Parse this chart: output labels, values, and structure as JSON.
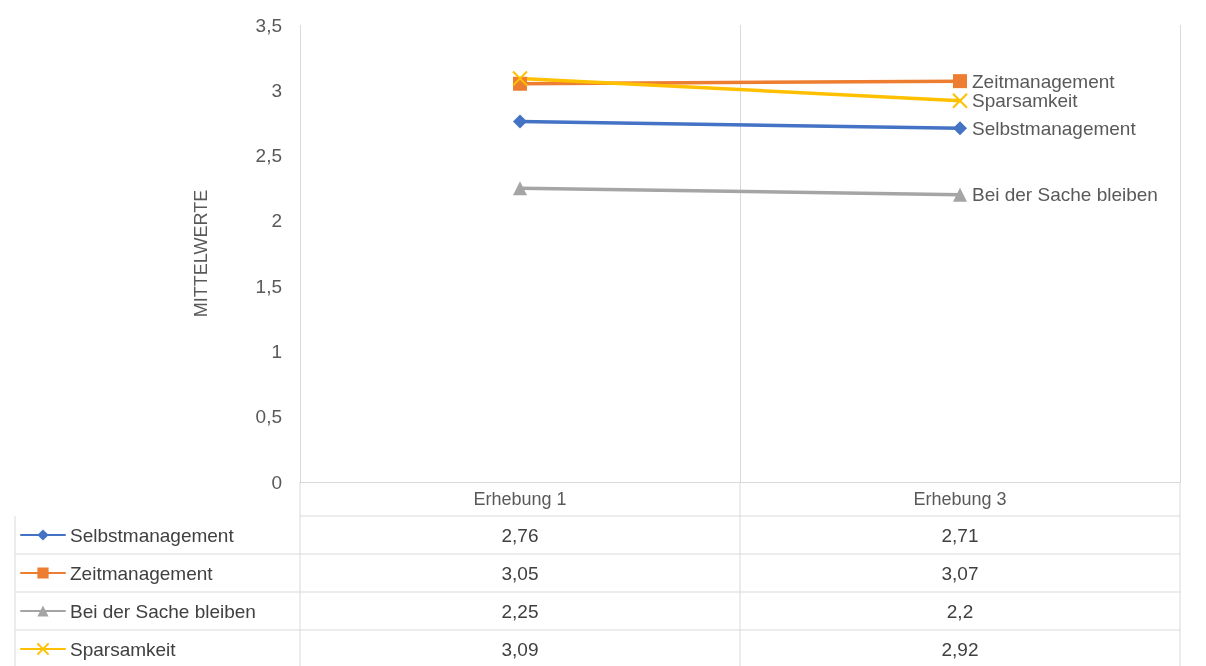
{
  "chart_data": {
    "type": "line",
    "ylabel": "MITTELWERTE",
    "categories": [
      "Erhebung 1",
      "Erhebung 3"
    ],
    "series": [
      {
        "name": "Selbstmanagement",
        "color": "#4472c4",
        "marker": "diamond",
        "values": [
          2.76,
          2.71
        ],
        "value_labels": [
          "2,76",
          "2,71"
        ]
      },
      {
        "name": "Zeitmanagement",
        "color": "#ed7d31",
        "marker": "square",
        "values": [
          3.05,
          3.07
        ],
        "value_labels": [
          "3,05",
          "3,07"
        ]
      },
      {
        "name": "Bei der Sache bleiben",
        "color": "#a5a5a5",
        "marker": "triangle",
        "values": [
          2.25,
          2.2
        ],
        "value_labels": [
          "2,25",
          "2,2"
        ]
      },
      {
        "name": "Sparsamkeit",
        "color": "#ffc000",
        "marker": "cross",
        "values": [
          3.09,
          2.92
        ],
        "value_labels": [
          "3,09",
          "2,92"
        ]
      }
    ],
    "ylim": [
      0,
      3.5
    ],
    "yticks": [
      0,
      {
        "value": 0.5,
        "label": "0,5"
      },
      1,
      {
        "value": 1.5,
        "label": "1,5"
      },
      2,
      {
        "value": 2.5,
        "label": "2,5"
      },
      3,
      {
        "value": 3.5,
        "label": "3,5"
      }
    ],
    "grid": "x",
    "legend": "bottom",
    "line_style": "solid"
  }
}
